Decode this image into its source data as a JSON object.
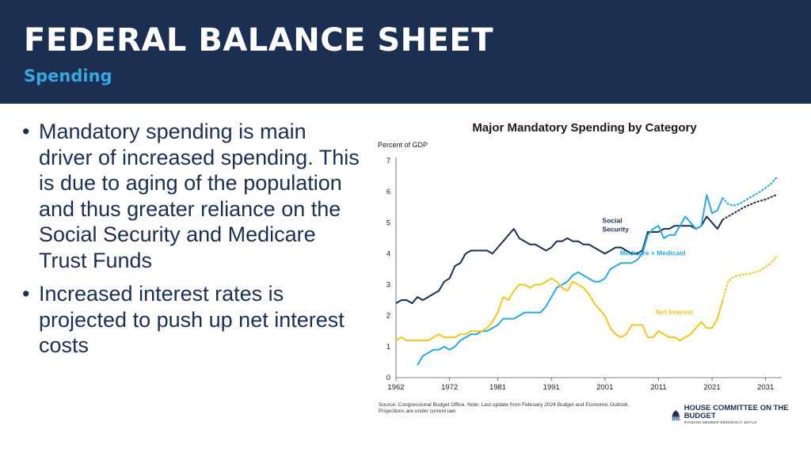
{
  "header": {
    "title": "FEDERAL BALANCE SHEET",
    "subtitle": "Spending"
  },
  "bullets": [
    "Mandatory spending is main driver of increased spending. This is due to aging of the population and thus greater reliance on the Social Security and Medicare Trust Funds",
    "Increased interest rates is projected to push up net interest costs"
  ],
  "source": {
    "line1": "Source: Congressional Budget Office. Note: Last update from February 2024 Budget and Economic Outlook.",
    "line2": "Projections are under current law."
  },
  "logo": {
    "name": "HOUSE COMMITTEE ON THE BUDGET",
    "sub": "RANKING MEMBER BRENDAN F. BOYLE"
  },
  "colors": {
    "header_bg": "#1b2f52",
    "accent": "#3aa6e0",
    "social_security": "#1b2f52",
    "medicare": "#27a9e1",
    "net_interest": "#f5c61a"
  },
  "chart_data": {
    "type": "line",
    "title": "Major Mandatory Spending by Category",
    "ylabel": "Percent of GDP",
    "xlabel": "",
    "xlim": [
      1962,
      2034
    ],
    "ylim": [
      0,
      7
    ],
    "xticks": [
      1962,
      1972,
      1981,
      1991,
      2001,
      2011,
      2021,
      2031
    ],
    "yticks": [
      0,
      1,
      2,
      3,
      4,
      5,
      6,
      7
    ],
    "grid": false,
    "legend": "inline labels",
    "series": [
      {
        "name": "Social Security",
        "label_lines": [
          "Social",
          "Security"
        ],
        "label_x": 2000.5,
        "label_y": 5.0,
        "color": "#1b2f52",
        "actual": [
          [
            1962,
            2.4
          ],
          [
            1963,
            2.5
          ],
          [
            1964,
            2.5
          ],
          [
            1965,
            2.4
          ],
          [
            1966,
            2.6
          ],
          [
            1967,
            2.5
          ],
          [
            1968,
            2.6
          ],
          [
            1969,
            2.7
          ],
          [
            1970,
            2.8
          ],
          [
            1971,
            3.1
          ],
          [
            1972,
            3.2
          ],
          [
            1973,
            3.6
          ],
          [
            1974,
            3.7
          ],
          [
            1975,
            4.0
          ],
          [
            1976,
            4.1
          ],
          [
            1977,
            4.1
          ],
          [
            1978,
            4.1
          ],
          [
            1979,
            4.1
          ],
          [
            1980,
            4.0
          ],
          [
            1981,
            4.2
          ],
          [
            1982,
            4.4
          ],
          [
            1983,
            4.6
          ],
          [
            1984,
            4.8
          ],
          [
            1985,
            4.5
          ],
          [
            1986,
            4.4
          ],
          [
            1987,
            4.3
          ],
          [
            1988,
            4.3
          ],
          [
            1989,
            4.2
          ],
          [
            1990,
            4.1
          ],
          [
            1991,
            4.2
          ],
          [
            1992,
            4.4
          ],
          [
            1993,
            4.4
          ],
          [
            1994,
            4.5
          ],
          [
            1995,
            4.4
          ],
          [
            1996,
            4.4
          ],
          [
            1997,
            4.3
          ],
          [
            1998,
            4.3
          ],
          [
            1999,
            4.2
          ],
          [
            2000,
            4.1
          ],
          [
            2001,
            4.0
          ],
          [
            2002,
            4.1
          ],
          [
            2003,
            4.2
          ],
          [
            2004,
            4.2
          ],
          [
            2005,
            4.1
          ],
          [
            2006,
            4.0
          ],
          [
            2007,
            4.0
          ],
          [
            2008,
            4.1
          ],
          [
            2009,
            4.7
          ],
          [
            2010,
            4.7
          ],
          [
            2011,
            4.7
          ],
          [
            2012,
            4.8
          ],
          [
            2013,
            4.8
          ],
          [
            2014,
            4.9
          ],
          [
            2015,
            4.9
          ],
          [
            2016,
            4.9
          ],
          [
            2017,
            4.9
          ],
          [
            2018,
            4.8
          ],
          [
            2019,
            4.9
          ],
          [
            2020,
            5.2
          ],
          [
            2021,
            5.0
          ],
          [
            2022,
            4.8
          ],
          [
            2023,
            5.1
          ]
        ],
        "projected": [
          [
            2023,
            5.1
          ],
          [
            2025,
            5.3
          ],
          [
            2027,
            5.5
          ],
          [
            2029,
            5.65
          ],
          [
            2031,
            5.75
          ],
          [
            2033,
            5.9
          ]
        ]
      },
      {
        "name": "Medicare + Medicaid",
        "label_lines": [
          "Medicare + Medicaid"
        ],
        "label_x": 2003.8,
        "label_y": 3.95,
        "color": "#27a9e1",
        "actual": [
          [
            1966,
            0.4
          ],
          [
            1967,
            0.7
          ],
          [
            1968,
            0.8
          ],
          [
            1969,
            0.9
          ],
          [
            1970,
            0.9
          ],
          [
            1971,
            1.0
          ],
          [
            1972,
            0.9
          ],
          [
            1973,
            1.0
          ],
          [
            1974,
            1.2
          ],
          [
            1975,
            1.3
          ],
          [
            1976,
            1.4
          ],
          [
            1977,
            1.4
          ],
          [
            1978,
            1.5
          ],
          [
            1979,
            1.5
          ],
          [
            1980,
            1.6
          ],
          [
            1981,
            1.7
          ],
          [
            1982,
            1.9
          ],
          [
            1983,
            1.9
          ],
          [
            1984,
            1.9
          ],
          [
            1985,
            2.0
          ],
          [
            1986,
            2.1
          ],
          [
            1987,
            2.1
          ],
          [
            1988,
            2.1
          ],
          [
            1989,
            2.1
          ],
          [
            1990,
            2.3
          ],
          [
            1991,
            2.6
          ],
          [
            1992,
            2.9
          ],
          [
            1993,
            3.0
          ],
          [
            1994,
            3.1
          ],
          [
            1995,
            3.3
          ],
          [
            1996,
            3.4
          ],
          [
            1997,
            3.3
          ],
          [
            1998,
            3.2
          ],
          [
            1999,
            3.1
          ],
          [
            2000,
            3.1
          ],
          [
            2001,
            3.2
          ],
          [
            2002,
            3.5
          ],
          [
            2003,
            3.6
          ],
          [
            2004,
            3.7
          ],
          [
            2005,
            3.7
          ],
          [
            2006,
            3.7
          ],
          [
            2007,
            3.8
          ],
          [
            2008,
            4.0
          ],
          [
            2009,
            4.6
          ],
          [
            2010,
            4.8
          ],
          [
            2011,
            4.9
          ],
          [
            2012,
            4.5
          ],
          [
            2013,
            4.6
          ],
          [
            2014,
            4.6
          ],
          [
            2015,
            4.9
          ],
          [
            2016,
            5.2
          ],
          [
            2017,
            5.0
          ],
          [
            2018,
            4.8
          ],
          [
            2019,
            4.9
          ],
          [
            2020,
            5.9
          ],
          [
            2021,
            5.3
          ],
          [
            2022,
            5.4
          ],
          [
            2023,
            5.8
          ]
        ],
        "projected": [
          [
            2023,
            5.8
          ],
          [
            2024,
            5.6
          ],
          [
            2025,
            5.55
          ],
          [
            2026,
            5.6
          ],
          [
            2028,
            5.8
          ],
          [
            2030,
            6.0
          ],
          [
            2032,
            6.25
          ],
          [
            2033,
            6.45
          ]
        ]
      },
      {
        "name": "Net Interest",
        "label_lines": [
          "Net Interest"
        ],
        "label_x": 2010.5,
        "label_y": 2.05,
        "color": "#f5c61a",
        "actual": [
          [
            1962,
            1.2
          ],
          [
            1963,
            1.3
          ],
          [
            1964,
            1.2
          ],
          [
            1965,
            1.2
          ],
          [
            1966,
            1.2
          ],
          [
            1967,
            1.2
          ],
          [
            1968,
            1.2
          ],
          [
            1969,
            1.3
          ],
          [
            1970,
            1.4
          ],
          [
            1971,
            1.3
          ],
          [
            1972,
            1.3
          ],
          [
            1973,
            1.3
          ],
          [
            1974,
            1.4
          ],
          [
            1975,
            1.4
          ],
          [
            1976,
            1.5
          ],
          [
            1977,
            1.5
          ],
          [
            1978,
            1.5
          ],
          [
            1979,
            1.6
          ],
          [
            1980,
            1.8
          ],
          [
            1981,
            2.1
          ],
          [
            1982,
            2.6
          ],
          [
            1983,
            2.5
          ],
          [
            1984,
            2.8
          ],
          [
            1985,
            3.0
          ],
          [
            1986,
            3.0
          ],
          [
            1987,
            2.9
          ],
          [
            1988,
            3.0
          ],
          [
            1989,
            3.0
          ],
          [
            1990,
            3.1
          ],
          [
            1991,
            3.2
          ],
          [
            1992,
            3.1
          ],
          [
            1993,
            2.9
          ],
          [
            1994,
            2.8
          ],
          [
            1995,
            3.1
          ],
          [
            1996,
            3.0
          ],
          [
            1997,
            2.9
          ],
          [
            1998,
            2.7
          ],
          [
            1999,
            2.4
          ],
          [
            2000,
            2.2
          ],
          [
            2001,
            2.0
          ],
          [
            2002,
            1.6
          ],
          [
            2003,
            1.4
          ],
          [
            2004,
            1.3
          ],
          [
            2005,
            1.4
          ],
          [
            2006,
            1.7
          ],
          [
            2007,
            1.7
          ],
          [
            2008,
            1.7
          ],
          [
            2009,
            1.3
          ],
          [
            2010,
            1.3
          ],
          [
            2011,
            1.5
          ],
          [
            2012,
            1.4
          ],
          [
            2013,
            1.3
          ],
          [
            2014,
            1.3
          ],
          [
            2015,
            1.2
          ],
          [
            2016,
            1.3
          ],
          [
            2017,
            1.4
          ],
          [
            2018,
            1.6
          ],
          [
            2019,
            1.8
          ],
          [
            2020,
            1.6
          ],
          [
            2021,
            1.6
          ],
          [
            2022,
            1.9
          ],
          [
            2023,
            2.5
          ]
        ],
        "projected": [
          [
            2023,
            2.5
          ],
          [
            2024,
            3.1
          ],
          [
            2025,
            3.25
          ],
          [
            2026,
            3.3
          ],
          [
            2028,
            3.35
          ],
          [
            2030,
            3.45
          ],
          [
            2032,
            3.7
          ],
          [
            2033,
            3.9
          ]
        ]
      }
    ]
  }
}
